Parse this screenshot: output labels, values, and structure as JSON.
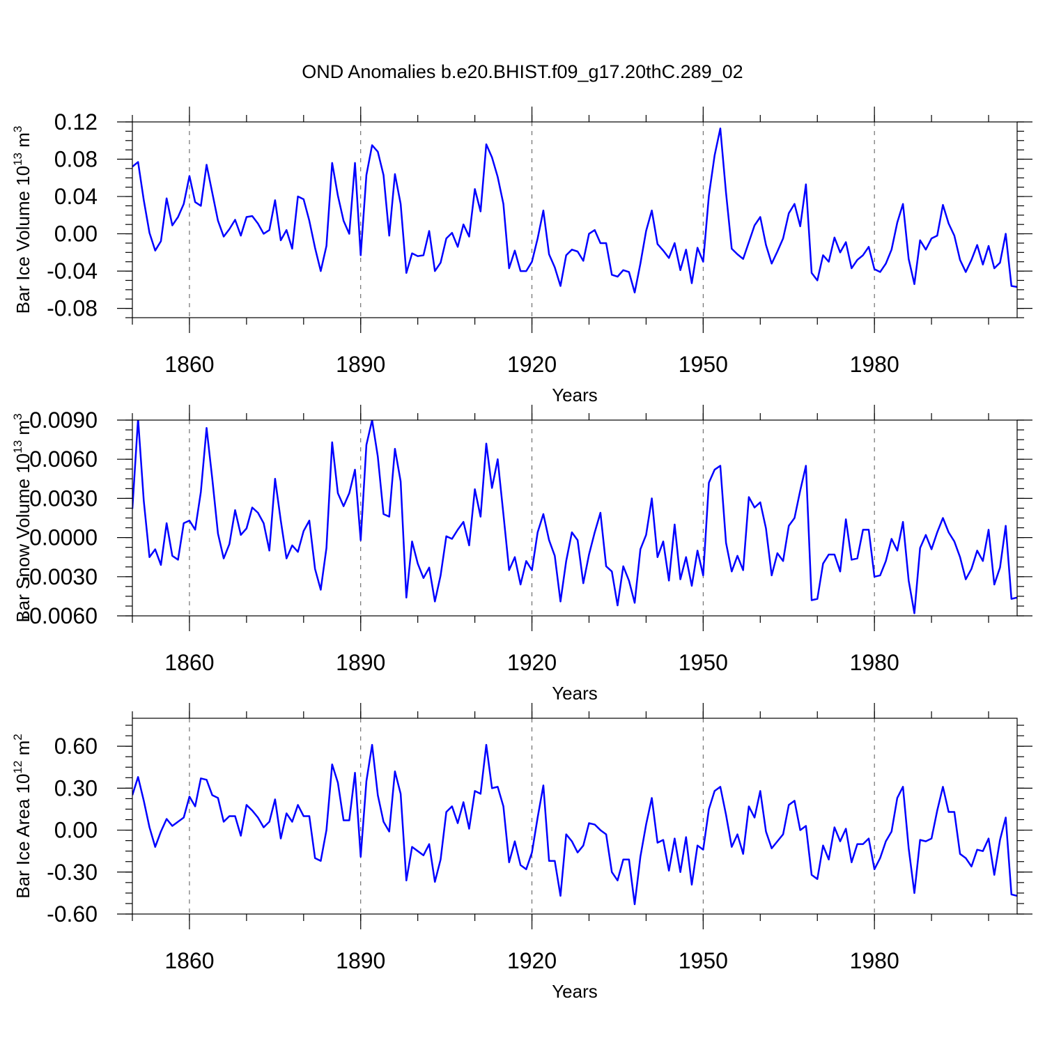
{
  "title": "OND Anomalies b.e20.BHIST.f09_g17.20thC.289_02",
  "chart_data": [
    {
      "type": "line",
      "name": "panel-volume",
      "ylabel_prefix": "Bar Ice Volume 10",
      "ylabel_exp": "13",
      "ylabel_unit": " m",
      "ylabel_unit_exp": "3",
      "xlabel": "Years",
      "xlim": [
        1850,
        2005
      ],
      "ylim": [
        -0.09,
        0.12
      ],
      "yticks": [
        0.12,
        0.08,
        0.04,
        0.0,
        -0.04,
        -0.08
      ],
      "ytick_labels": [
        "0.12",
        "0.08",
        "0.04",
        "0.00",
        "-0.04",
        "-0.08"
      ],
      "xticks": [
        1860,
        1890,
        1920,
        1950,
        1980
      ],
      "xtick_labels": [
        "1860",
        "1890",
        "1920",
        "1950",
        "1980"
      ],
      "x_start": 1850,
      "values": [
        0.072,
        0.077,
        0.036,
        0.001,
        -0.018,
        -0.008,
        0.038,
        0.009,
        0.018,
        0.032,
        0.062,
        0.034,
        0.03,
        0.074,
        0.044,
        0.014,
        -0.003,
        0.005,
        0.015,
        -0.002,
        0.018,
        0.019,
        0.011,
        0.0,
        0.004,
        0.036,
        -0.007,
        0.004,
        -0.016,
        0.04,
        0.037,
        0.014,
        -0.015,
        -0.04,
        -0.013,
        0.076,
        0.041,
        0.014,
        0.0,
        0.076,
        -0.023,
        0.063,
        0.095,
        0.088,
        0.063,
        -0.002,
        0.064,
        0.032,
        -0.042,
        -0.021,
        -0.024,
        -0.023,
        0.003,
        -0.04,
        -0.031,
        -0.005,
        0.001,
        -0.014,
        0.01,
        -0.003,
        0.048,
        0.024,
        0.096,
        0.082,
        0.061,
        0.032,
        -0.037,
        -0.018,
        -0.04,
        -0.04,
        -0.03,
        -0.005,
        0.025,
        -0.022,
        -0.036,
        -0.056,
        -0.023,
        -0.017,
        -0.019,
        -0.029,
        0.0,
        0.004,
        -0.01,
        -0.01,
        -0.044,
        -0.046,
        -0.039,
        -0.041,
        -0.063,
        -0.032,
        0.003,
        0.025,
        -0.011,
        -0.018,
        -0.026,
        -0.01,
        -0.039,
        -0.017,
        -0.053,
        -0.015,
        -0.03,
        0.041,
        0.084,
        0.113,
        0.044,
        -0.016,
        -0.022,
        -0.027,
        -0.009,
        0.009,
        0.018,
        -0.012,
        -0.032,
        -0.019,
        -0.005,
        0.022,
        0.032,
        0.008,
        0.053,
        -0.042,
        -0.05,
        -0.023,
        -0.03,
        -0.004,
        -0.02,
        -0.009,
        -0.037,
        -0.028,
        -0.023,
        -0.014,
        -0.038,
        -0.041,
        -0.032,
        -0.017,
        0.012,
        0.032,
        -0.027,
        -0.054,
        -0.007,
        -0.017,
        -0.005,
        -0.002,
        0.031,
        0.011,
        -0.002,
        -0.028,
        -0.041,
        -0.028,
        -0.012,
        -0.033,
        -0.013,
        -0.037,
        -0.031,
        0.0,
        -0.056,
        -0.057
      ]
    },
    {
      "type": "line",
      "name": "panel-snow",
      "ylabel_prefix": "Bar Snow Volume 10",
      "ylabel_exp": "13",
      "ylabel_unit": " m",
      "ylabel_unit_exp": "3",
      "xlabel": "Years",
      "xlim": [
        1850,
        2005
      ],
      "ylim": [
        -0.006,
        0.009
      ],
      "yticks": [
        0.009,
        0.006,
        0.003,
        0.0,
        -0.003,
        -0.006
      ],
      "ytick_labels": [
        "0.0090",
        "0.0060",
        "0.0030",
        "0.0000",
        "-0.0030",
        "-0.0060"
      ],
      "xticks": [
        1860,
        1890,
        1920,
        1950,
        1980
      ],
      "xtick_labels": [
        "1860",
        "1890",
        "1920",
        "1950",
        "1980"
      ],
      "x_start": 1850,
      "values": [
        0.0022,
        0.0091,
        0.0028,
        -0.0015,
        -0.0009,
        -0.0021,
        0.0011,
        -0.0014,
        -0.0017,
        0.0011,
        0.0013,
        0.0006,
        0.0035,
        0.0084,
        0.0045,
        0.0003,
        -0.0016,
        -0.0005,
        0.0021,
        0.0002,
        0.0007,
        0.0023,
        0.0019,
        0.0011,
        -0.001,
        0.0045,
        0.0013,
        -0.0016,
        -0.0006,
        -0.0011,
        0.0005,
        0.0013,
        -0.0024,
        -0.004,
        -0.0008,
        0.0073,
        0.0034,
        0.0024,
        0.0034,
        0.0052,
        -0.0002,
        0.0071,
        0.009,
        0.0062,
        0.0018,
        0.0016,
        0.0068,
        0.0043,
        -0.0046,
        -0.0003,
        -0.002,
        -0.0031,
        -0.0023,
        -0.0049,
        -0.0029,
        0.0001,
        -0.0001,
        0.0006,
        0.0012,
        -0.0006,
        0.0037,
        0.0016,
        0.0072,
        0.0038,
        0.006,
        0.0018,
        -0.0025,
        -0.0015,
        -0.0036,
        -0.0018,
        -0.0025,
        0.0004,
        0.0018,
        -0.0002,
        -0.0014,
        -0.0049,
        -0.0018,
        0.0004,
        -0.0002,
        -0.0035,
        -0.0013,
        0.0004,
        0.0019,
        -0.0022,
        -0.0026,
        -0.0052,
        -0.0022,
        -0.0033,
        -0.005,
        -0.0009,
        0.0002,
        0.003,
        -0.0015,
        -0.0003,
        -0.0033,
        0.001,
        -0.0032,
        -0.0015,
        -0.0037,
        -0.001,
        -0.0029,
        0.0042,
        0.0052,
        0.0055,
        -0.0004,
        -0.0026,
        -0.0014,
        -0.0025,
        0.0031,
        0.0023,
        0.0027,
        0.0007,
        -0.0029,
        -0.0012,
        -0.0018,
        0.0009,
        0.0015,
        0.0036,
        0.0055,
        -0.0048,
        -0.0047,
        -0.002,
        -0.0013,
        -0.0013,
        -0.0026,
        0.0014,
        -0.0017,
        -0.0016,
        0.0006,
        0.0006,
        -0.003,
        -0.0029,
        -0.0018,
        -0.0001,
        -0.001,
        0.0012,
        -0.0033,
        -0.0058,
        -0.0008,
        0.0002,
        -0.0009,
        0.0004,
        0.0015,
        0.0004,
        -0.0003,
        -0.0015,
        -0.0032,
        -0.0024,
        -0.001,
        -0.0018,
        0.0006,
        -0.0036,
        -0.0023,
        0.0009,
        -0.0047,
        -0.0046
      ]
    },
    {
      "type": "line",
      "name": "panel-area",
      "ylabel_prefix": "Bar Ice Area 10",
      "ylabel_exp": "12",
      "ylabel_unit": " m",
      "ylabel_unit_exp": "2",
      "xlabel": "Years",
      "xlim": [
        1850,
        2005
      ],
      "ylim": [
        -0.6,
        0.8
      ],
      "yticks": [
        0.6,
        0.3,
        0.0,
        -0.3,
        -0.6
      ],
      "ytick_labels": [
        "0.60",
        "0.30",
        "0.00",
        "-0.30",
        "-0.60"
      ],
      "xticks": [
        1860,
        1890,
        1920,
        1950,
        1980
      ],
      "xtick_labels": [
        "1860",
        "1890",
        "1920",
        "1950",
        "1980"
      ],
      "x_start": 1850,
      "values": [
        0.25,
        0.38,
        0.21,
        0.02,
        -0.12,
        -0.01,
        0.08,
        0.03,
        0.06,
        0.09,
        0.24,
        0.17,
        0.37,
        0.36,
        0.25,
        0.23,
        0.06,
        0.1,
        0.1,
        -0.04,
        0.18,
        0.14,
        0.09,
        0.02,
        0.06,
        0.22,
        -0.06,
        0.12,
        0.06,
        0.18,
        0.1,
        0.1,
        -0.2,
        -0.22,
        0.0,
        0.47,
        0.34,
        0.07,
        0.07,
        0.41,
        -0.19,
        0.35,
        0.61,
        0.25,
        0.06,
        -0.01,
        0.42,
        0.26,
        -0.36,
        -0.12,
        -0.15,
        -0.18,
        -0.1,
        -0.37,
        -0.21,
        0.13,
        0.17,
        0.05,
        0.2,
        0.01,
        0.28,
        0.26,
        0.61,
        0.3,
        0.31,
        0.17,
        -0.23,
        -0.08,
        -0.25,
        -0.28,
        -0.16,
        0.09,
        0.32,
        -0.22,
        -0.22,
        -0.47,
        -0.03,
        -0.08,
        -0.16,
        -0.11,
        0.05,
        0.04,
        0.0,
        -0.03,
        -0.3,
        -0.36,
        -0.21,
        -0.21,
        -0.53,
        -0.19,
        0.04,
        0.23,
        -0.09,
        -0.07,
        -0.29,
        -0.06,
        -0.3,
        -0.05,
        -0.39,
        -0.11,
        -0.14,
        0.15,
        0.28,
        0.31,
        0.11,
        -0.12,
        -0.03,
        -0.17,
        0.17,
        0.09,
        0.28,
        -0.01,
        -0.13,
        -0.08,
        -0.03,
        0.18,
        0.21,
        0.0,
        0.03,
        -0.32,
        -0.35,
        -0.11,
        -0.21,
        0.02,
        -0.08,
        0.01,
        -0.23,
        -0.1,
        -0.1,
        -0.06,
        -0.28,
        -0.2,
        -0.08,
        -0.01,
        0.23,
        0.31,
        -0.13,
        -0.45,
        -0.07,
        -0.08,
        -0.06,
        0.14,
        0.31,
        0.13,
        0.13,
        -0.17,
        -0.2,
        -0.26,
        -0.14,
        -0.15,
        -0.06,
        -0.32,
        -0.07,
        0.09,
        -0.46,
        -0.47
      ]
    }
  ]
}
